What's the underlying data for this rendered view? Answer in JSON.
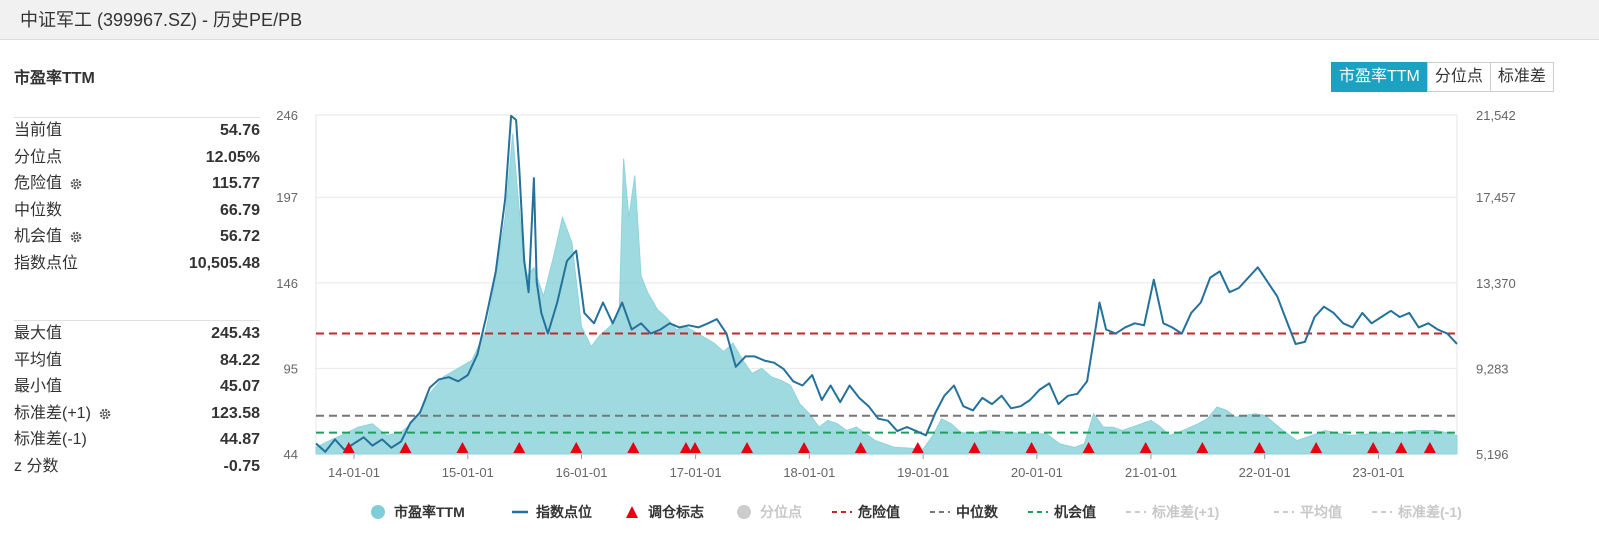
{
  "window_title": "中证军工 (399967.SZ) - 历史PE/PB",
  "section_title": "市盈率TTM",
  "tabs": [
    {
      "label": "市盈率TTM",
      "active": true
    },
    {
      "label": "分位点",
      "active": false
    },
    {
      "label": "标准差",
      "active": false
    }
  ],
  "stats_group1": [
    {
      "label": "当前值",
      "value": "54.76",
      "gear": false
    },
    {
      "label": "分位点",
      "value": "12.05%",
      "gear": false
    },
    {
      "label": "危险值",
      "value": "115.77",
      "gear": true
    },
    {
      "label": "中位数",
      "value": "66.79",
      "gear": false
    },
    {
      "label": "机会值",
      "value": "56.72",
      "gear": true
    },
    {
      "label": "指数点位",
      "value": "10,505.48",
      "gear": false
    }
  ],
  "stats_group2": [
    {
      "label": "最大值",
      "value": "245.43",
      "gear": false
    },
    {
      "label": "平均值",
      "value": "84.22",
      "gear": false
    },
    {
      "label": "最小值",
      "value": "45.07",
      "gear": false
    },
    {
      "label": "标准差(+1)",
      "value": "123.58",
      "gear": true
    },
    {
      "label": "标准差(-1)",
      "value": "44.87",
      "gear": false
    },
    {
      "label": "z 分数",
      "value": "-0.75",
      "gear": false
    }
  ],
  "chart_data": {
    "type": "area",
    "x_start": "2013-09-01",
    "x_end": "2023-09-10",
    "x_ticks": [
      "14-01-01",
      "15-01-01",
      "16-01-01",
      "17-01-01",
      "18-01-01",
      "19-01-01",
      "20-01-01",
      "21-01-01",
      "22-01-01",
      "23-01-01"
    ],
    "x_tick_dates": [
      "2014-01-01",
      "2015-01-01",
      "2016-01-01",
      "2017-01-01",
      "2018-01-01",
      "2019-01-01",
      "2020-01-01",
      "2021-01-01",
      "2022-01-01",
      "2023-01-01"
    ],
    "y_left": {
      "ticks": [
        "44",
        "95",
        "146",
        "197",
        "246"
      ],
      "min": 44,
      "max": 246
    },
    "y_right": {
      "ticks": [
        "5,196",
        "9,283",
        "13,370",
        "17,457",
        "21,542"
      ],
      "min": 5196,
      "max": 21542
    },
    "pe_series": {
      "name": "市盈率TTM",
      "color": "#7fcdd6",
      "points": [
        [
          "2013-09-01",
          48
        ],
        [
          "2013-10-15",
          52
        ],
        [
          "2013-12-01",
          56
        ],
        [
          "2014-01-15",
          60
        ],
        [
          "2014-03-01",
          62
        ],
        [
          "2014-04-15",
          55
        ],
        [
          "2014-06-01",
          57
        ],
        [
          "2014-07-15",
          64
        ],
        [
          "2014-09-01",
          80
        ],
        [
          "2014-10-15",
          90
        ],
        [
          "2014-12-01",
          95
        ],
        [
          "2015-01-15",
          100
        ],
        [
          "2015-03-01",
          118
        ],
        [
          "2015-04-01",
          150
        ],
        [
          "2015-05-01",
          185
        ],
        [
          "2015-05-25",
          235
        ],
        [
          "2015-06-10",
          200
        ],
        [
          "2015-06-25",
          170
        ],
        [
          "2015-07-10",
          150
        ],
        [
          "2015-08-01",
          155
        ],
        [
          "2015-09-01",
          138
        ],
        [
          "2015-10-01",
          160
        ],
        [
          "2015-11-01",
          185
        ],
        [
          "2015-12-01",
          170
        ],
        [
          "2016-01-01",
          120
        ],
        [
          "2016-02-01",
          108
        ],
        [
          "2016-03-01",
          115
        ],
        [
          "2016-04-01",
          120
        ],
        [
          "2016-05-01",
          128
        ],
        [
          "2016-05-15",
          220
        ],
        [
          "2016-06-01",
          185
        ],
        [
          "2016-06-20",
          210
        ],
        [
          "2016-07-10",
          150
        ],
        [
          "2016-08-01",
          140
        ],
        [
          "2016-09-01",
          130
        ],
        [
          "2016-10-01",
          125
        ],
        [
          "2016-11-01",
          118
        ],
        [
          "2016-12-01",
          120
        ],
        [
          "2017-01-15",
          115
        ],
        [
          "2017-03-01",
          110
        ],
        [
          "2017-04-01",
          105
        ],
        [
          "2017-05-01",
          110
        ],
        [
          "2017-06-01",
          100
        ],
        [
          "2017-07-01",
          92
        ],
        [
          "2017-08-01",
          95
        ],
        [
          "2017-09-01",
          90
        ],
        [
          "2017-10-01",
          88
        ],
        [
          "2017-11-01",
          85
        ],
        [
          "2017-12-01",
          74
        ],
        [
          "2018-01-01",
          68
        ],
        [
          "2018-02-01",
          60
        ],
        [
          "2018-03-01",
          64
        ],
        [
          "2018-04-01",
          62
        ],
        [
          "2018-05-01",
          58
        ],
        [
          "2018-06-01",
          60
        ],
        [
          "2018-08-01",
          52
        ],
        [
          "2018-10-01",
          48
        ],
        [
          "2019-01-01",
          47
        ],
        [
          "2019-02-01",
          55
        ],
        [
          "2019-03-01",
          65
        ],
        [
          "2019-04-01",
          62
        ],
        [
          "2019-05-01",
          57
        ],
        [
          "2019-06-01",
          56
        ],
        [
          "2019-08-01",
          58
        ],
        [
          "2019-10-01",
          57
        ],
        [
          "2019-12-01",
          56
        ],
        [
          "2020-02-01",
          56
        ],
        [
          "2020-03-15",
          50
        ],
        [
          "2020-05-01",
          48
        ],
        [
          "2020-06-01",
          50
        ],
        [
          "2020-07-01",
          68
        ],
        [
          "2020-08-01",
          60
        ],
        [
          "2020-09-01",
          60
        ],
        [
          "2020-10-01",
          58
        ],
        [
          "2020-12-01",
          62
        ],
        [
          "2021-01-01",
          64
        ],
        [
          "2021-02-01",
          60
        ],
        [
          "2021-03-01",
          55
        ],
        [
          "2021-04-01",
          57
        ],
        [
          "2021-06-01",
          62
        ],
        [
          "2021-07-01",
          65
        ],
        [
          "2021-08-01",
          72
        ],
        [
          "2021-09-01",
          70
        ],
        [
          "2021-10-01",
          66
        ],
        [
          "2021-12-01",
          68
        ],
        [
          "2022-01-01",
          67
        ],
        [
          "2022-03-01",
          58
        ],
        [
          "2022-04-15",
          52
        ],
        [
          "2022-06-01",
          55
        ],
        [
          "2022-07-15",
          58
        ],
        [
          "2022-09-01",
          56
        ],
        [
          "2022-10-01",
          55
        ],
        [
          "2022-12-01",
          56
        ],
        [
          "2023-02-01",
          57
        ],
        [
          "2023-03-01",
          56
        ],
        [
          "2023-05-01",
          58
        ],
        [
          "2023-07-01",
          58
        ],
        [
          "2023-08-01",
          57
        ],
        [
          "2023-09-10",
          55
        ]
      ]
    },
    "index_series": {
      "name": "指数点位",
      "color": "#24719c",
      "points": [
        [
          "2013-09-01",
          5700
        ],
        [
          "2013-10-01",
          5300
        ],
        [
          "2013-11-01",
          5900
        ],
        [
          "2013-12-01",
          5400
        ],
        [
          "2014-01-01",
          5700
        ],
        [
          "2014-02-01",
          6000
        ],
        [
          "2014-03-01",
          5600
        ],
        [
          "2014-04-01",
          5900
        ],
        [
          "2014-05-01",
          5500
        ],
        [
          "2014-06-01",
          5800
        ],
        [
          "2014-07-01",
          6700
        ],
        [
          "2014-08-01",
          7200
        ],
        [
          "2014-09-01",
          8400
        ],
        [
          "2014-10-01",
          8800
        ],
        [
          "2014-11-01",
          8900
        ],
        [
          "2014-12-01",
          8700
        ],
        [
          "2015-01-01",
          9000
        ],
        [
          "2015-02-01",
          10000
        ],
        [
          "2015-03-01",
          11800
        ],
        [
          "2015-04-01",
          14000
        ],
        [
          "2015-05-01",
          17500
        ],
        [
          "2015-05-20",
          21500
        ],
        [
          "2015-06-05",
          21300
        ],
        [
          "2015-06-15",
          19000
        ],
        [
          "2015-07-01",
          14500
        ],
        [
          "2015-07-15",
          13000
        ],
        [
          "2015-08-01",
          18500
        ],
        [
          "2015-08-10",
          13500
        ],
        [
          "2015-08-25",
          12000
        ],
        [
          "2015-09-15",
          11000
        ],
        [
          "2015-10-15",
          12500
        ],
        [
          "2015-11-15",
          14500
        ],
        [
          "2015-12-15",
          15000
        ],
        [
          "2016-01-10",
          12000
        ],
        [
          "2016-02-10",
          11500
        ],
        [
          "2016-03-10",
          12500
        ],
        [
          "2016-04-10",
          11500
        ],
        [
          "2016-05-10",
          12500
        ],
        [
          "2016-06-10",
          11200
        ],
        [
          "2016-07-10",
          11500
        ],
        [
          "2016-08-10",
          11000
        ],
        [
          "2016-09-10",
          11200
        ],
        [
          "2016-10-10",
          11500
        ],
        [
          "2016-11-10",
          11300
        ],
        [
          "2016-12-10",
          11400
        ],
        [
          "2017-01-10",
          11300
        ],
        [
          "2017-02-10",
          11500
        ],
        [
          "2017-03-10",
          11700
        ],
        [
          "2017-04-10",
          11000
        ],
        [
          "2017-05-10",
          9400
        ],
        [
          "2017-06-10",
          9900
        ],
        [
          "2017-07-10",
          9900
        ],
        [
          "2017-08-10",
          9700
        ],
        [
          "2017-09-10",
          9600
        ],
        [
          "2017-10-10",
          9300
        ],
        [
          "2017-11-10",
          8700
        ],
        [
          "2017-12-10",
          8500
        ],
        [
          "2018-01-10",
          9000
        ],
        [
          "2018-02-10",
          7800
        ],
        [
          "2018-03-10",
          8500
        ],
        [
          "2018-04-10",
          7700
        ],
        [
          "2018-05-10",
          8500
        ],
        [
          "2018-06-10",
          7900
        ],
        [
          "2018-07-10",
          7500
        ],
        [
          "2018-08-10",
          6900
        ],
        [
          "2018-09-10",
          6800
        ],
        [
          "2018-10-10",
          6300
        ],
        [
          "2018-11-10",
          6500
        ],
        [
          "2018-12-10",
          6300
        ],
        [
          "2019-01-10",
          6100
        ],
        [
          "2019-02-10",
          7200
        ],
        [
          "2019-03-10",
          8000
        ],
        [
          "2019-04-10",
          8500
        ],
        [
          "2019-05-10",
          7500
        ],
        [
          "2019-06-10",
          7300
        ],
        [
          "2019-07-10",
          7900
        ],
        [
          "2019-08-10",
          7600
        ],
        [
          "2019-09-10",
          8000
        ],
        [
          "2019-10-10",
          7400
        ],
        [
          "2019-11-10",
          7500
        ],
        [
          "2019-12-10",
          7800
        ],
        [
          "2020-01-10",
          8300
        ],
        [
          "2020-02-10",
          8600
        ],
        [
          "2020-03-10",
          7600
        ],
        [
          "2020-04-10",
          8000
        ],
        [
          "2020-05-10",
          8100
        ],
        [
          "2020-06-10",
          8700
        ],
        [
          "2020-07-10",
          11500
        ],
        [
          "2020-07-20",
          12500
        ],
        [
          "2020-08-10",
          11200
        ],
        [
          "2020-09-10",
          11000
        ],
        [
          "2020-10-10",
          11300
        ],
        [
          "2020-11-10",
          11500
        ],
        [
          "2020-12-10",
          11400
        ],
        [
          "2021-01-10",
          13600
        ],
        [
          "2021-02-10",
          11500
        ],
        [
          "2021-03-10",
          11300
        ],
        [
          "2021-04-10",
          11000
        ],
        [
          "2021-05-10",
          12000
        ],
        [
          "2021-06-10",
          12500
        ],
        [
          "2021-07-10",
          13700
        ],
        [
          "2021-08-10",
          14000
        ],
        [
          "2021-09-10",
          13000
        ],
        [
          "2021-10-10",
          13200
        ],
        [
          "2021-12-10",
          14200
        ],
        [
          "2022-01-10",
          13500
        ],
        [
          "2022-02-10",
          12800
        ],
        [
          "2022-03-10",
          11700
        ],
        [
          "2022-04-10",
          10500
        ],
        [
          "2022-05-10",
          10600
        ],
        [
          "2022-06-10",
          11800
        ],
        [
          "2022-07-10",
          12300
        ],
        [
          "2022-08-10",
          12000
        ],
        [
          "2022-09-10",
          11500
        ],
        [
          "2022-10-10",
          11300
        ],
        [
          "2022-11-10",
          12000
        ],
        [
          "2022-12-10",
          11500
        ],
        [
          "2023-01-10",
          11800
        ],
        [
          "2023-02-10",
          12100
        ],
        [
          "2023-03-10",
          11800
        ],
        [
          "2023-04-10",
          12000
        ],
        [
          "2023-05-10",
          11300
        ],
        [
          "2023-06-10",
          11500
        ],
        [
          "2023-07-10",
          11200
        ],
        [
          "2023-08-10",
          11000
        ],
        [
          "2023-09-10",
          10505
        ]
      ]
    },
    "danger_value": 115.77,
    "median_value": 66.79,
    "opportunity_value": 56.72,
    "rebalance_marks": {
      "name": "调仓标志",
      "color": "#e60012",
      "dates": [
        "2013-12-15",
        "2014-06-15",
        "2014-12-15",
        "2015-06-15",
        "2015-12-15",
        "2016-06-15",
        "2016-12-01",
        "2016-12-30",
        "2017-06-15",
        "2017-12-15",
        "2018-06-15",
        "2018-12-15",
        "2019-06-15",
        "2019-12-15",
        "2020-06-15",
        "2020-12-15",
        "2021-06-15",
        "2021-12-15",
        "2022-06-15",
        "2022-12-15",
        "2023-03-15",
        "2023-06-15"
      ]
    },
    "legend": [
      {
        "label": "市盈率TTM",
        "kind": "dot",
        "color": "#7fcdd6",
        "faded": false
      },
      {
        "label": "指数点位",
        "kind": "line",
        "color": "#24719c",
        "faded": false
      },
      {
        "label": "调仓标志",
        "kind": "triangle",
        "color": "#e60012",
        "faded": false
      },
      {
        "label": "分位点",
        "kind": "dot",
        "color": "#cccccc",
        "faded": true
      },
      {
        "label": "危险值",
        "kind": "dash",
        "color": "#c0282d",
        "faded": false
      },
      {
        "label": "中位数",
        "kind": "dash",
        "color": "#777777",
        "faded": false
      },
      {
        "label": "机会值",
        "kind": "dash",
        "color": "#1f9e5c",
        "faded": false
      },
      {
        "label": "标准差(+1)",
        "kind": "dash",
        "color": "#cccccc",
        "faded": true
      },
      {
        "label": "平均值",
        "kind": "dash",
        "color": "#cccccc",
        "faded": true
      },
      {
        "label": "标准差(-1)",
        "kind": "dash",
        "color": "#cccccc",
        "faded": true
      }
    ]
  }
}
